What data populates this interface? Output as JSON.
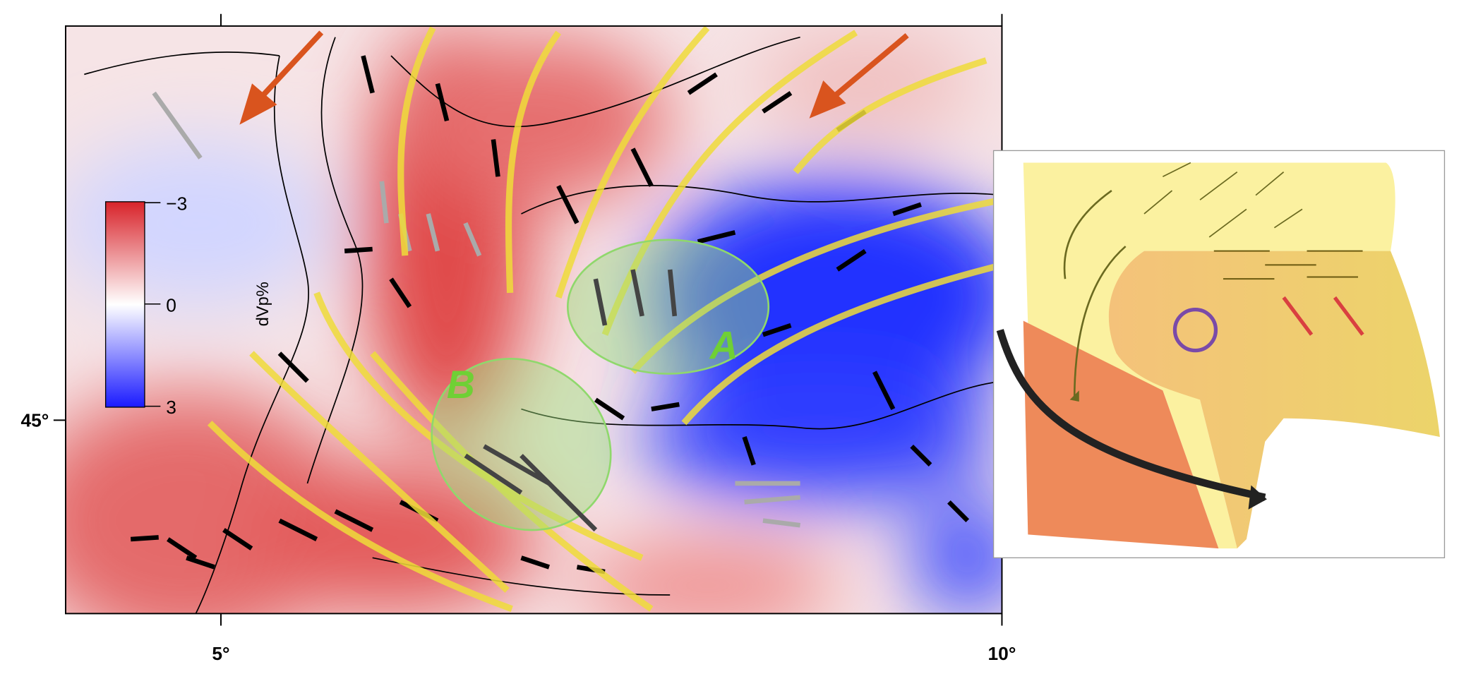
{
  "map": {
    "x_ticks": [
      "5°",
      "10°"
    ],
    "y_ticks": [
      "45°"
    ],
    "colorbar": {
      "label": "dVp%",
      "ticks": [
        "−3",
        "0",
        "3"
      ]
    },
    "regions": [
      "A",
      "B"
    ]
  }
}
